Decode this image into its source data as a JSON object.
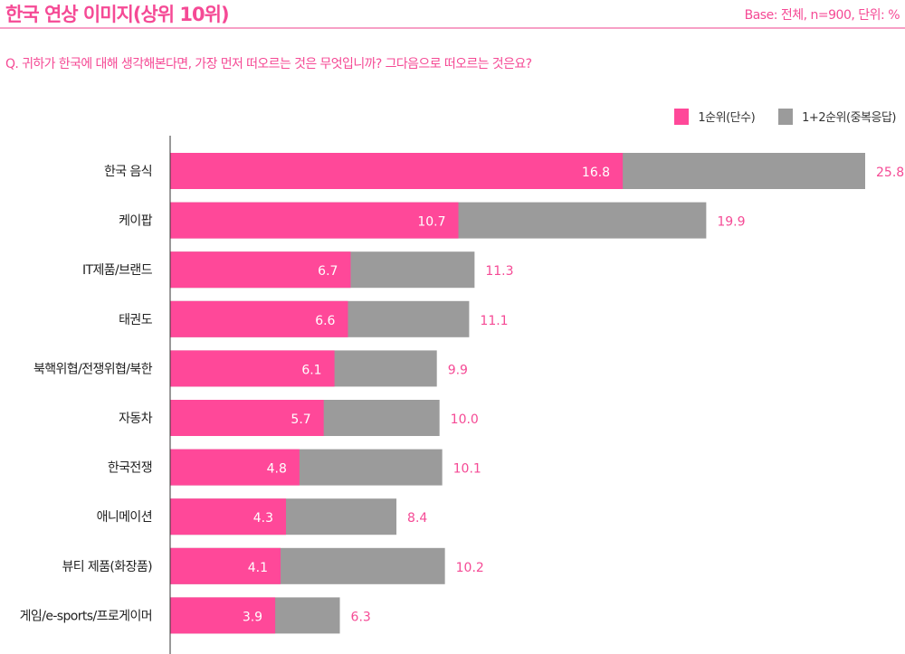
{
  "header": {
    "title": "한국 연상 이미지(상위 10위)",
    "base": "Base: 전체, n=900, 단위: %"
  },
  "question": "Q. 귀하가 한국에 대해 생각해본다면, 가장 먼저 떠오르는 것은 무엇입니까? 그다음으로 떠오르는 것은요?",
  "colors": {
    "accent": "#f54a95",
    "first": "#ff4899",
    "total": "#9b9b9b"
  },
  "chart_data": {
    "type": "bar",
    "orientation": "horizontal",
    "categories": [
      "한국 음식",
      "케이팝",
      "IT제품/브랜드",
      "태권도",
      "북핵위협/전쟁위협/북한",
      "자동차",
      "한국전쟁",
      "애니메이션",
      "뷰티 제품(화장품)",
      "게임/e-sports/프로게이머"
    ],
    "series": [
      {
        "name": "1순위(단수)",
        "color": "#ff4899",
        "values": [
          16.8,
          10.7,
          6.7,
          6.6,
          6.1,
          5.7,
          4.8,
          4.3,
          4.1,
          3.9
        ]
      },
      {
        "name": "1+2순위(중복응답)",
        "color": "#9b9b9b",
        "values": [
          25.8,
          19.9,
          11.3,
          11.1,
          9.9,
          10.0,
          10.1,
          8.4,
          10.2,
          6.3
        ]
      }
    ],
    "xlim": [
      0,
      25.8
    ],
    "grid": false,
    "legend": "top-right"
  }
}
